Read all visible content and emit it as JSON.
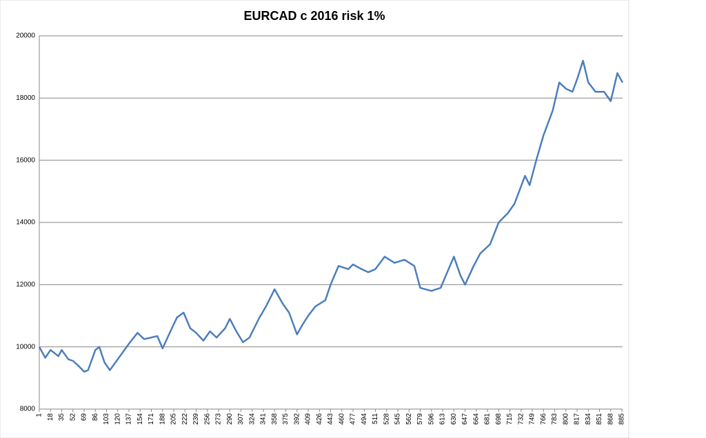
{
  "chart_data": {
    "type": "line",
    "title": "EURCAD c 2016 risk 1%",
    "x": [
      1,
      10,
      18,
      30,
      35,
      45,
      52,
      60,
      69,
      75,
      86,
      92,
      100,
      108,
      120,
      137,
      150,
      160,
      171,
      180,
      188,
      200,
      210,
      220,
      230,
      239,
      250,
      260,
      270,
      283,
      290,
      300,
      310,
      320,
      334,
      345,
      358,
      370,
      380,
      392,
      400,
      409,
      420,
      435,
      443,
      455,
      470,
      477,
      490,
      500,
      511,
      525,
      540,
      555,
      570,
      579,
      596,
      610,
      620,
      630,
      640,
      647,
      660,
      670,
      685,
      698,
      712,
      722,
      738,
      745,
      755,
      766,
      780,
      790,
      800,
      810,
      817,
      826,
      834,
      845,
      858,
      868,
      878,
      886
    ],
    "series": [
      {
        "color": "#4a7ebb",
        "values": [
          10000,
          9650,
          9900,
          9700,
          9900,
          9600,
          9550,
          9400,
          9200,
          9250,
          9900,
          10000,
          9500,
          9250,
          9600,
          10100,
          10450,
          10250,
          10300,
          10350,
          9950,
          10500,
          10950,
          11100,
          10600,
          10450,
          10200,
          10500,
          10300,
          10600,
          10900,
          10500,
          10150,
          10300,
          10900,
          11300,
          11850,
          11400,
          11100,
          10400,
          10700,
          11000,
          11300,
          11500,
          12000,
          12600,
          12500,
          12650,
          12500,
          12400,
          12500,
          12900,
          12700,
          12800,
          12600,
          11900,
          11800,
          11900,
          12400,
          12900,
          12300,
          12000,
          12600,
          13000,
          13300,
          14000,
          14300,
          14600,
          15500,
          15200,
          16000,
          16800,
          17600,
          18500,
          18300,
          18200,
          18600,
          19200,
          18500,
          18200,
          18200,
          17900,
          18800,
          18500
        ]
      }
    ],
    "xlim": [
      1,
      886
    ],
    "xticks": [
      1,
      18,
      35,
      52,
      69,
      86,
      103,
      120,
      137,
      154,
      171,
      188,
      205,
      222,
      239,
      256,
      273,
      290,
      307,
      324,
      341,
      358,
      375,
      392,
      409,
      426,
      443,
      460,
      477,
      494,
      511,
      528,
      545,
      562,
      579,
      596,
      613,
      630,
      647,
      664,
      681,
      698,
      715,
      732,
      749,
      766,
      783,
      800,
      817,
      834,
      851,
      868,
      885
    ],
    "ylim": [
      8000,
      20000
    ],
    "yticks": [
      8000,
      10000,
      12000,
      14000,
      16000,
      18000,
      20000
    ],
    "grid": true
  }
}
